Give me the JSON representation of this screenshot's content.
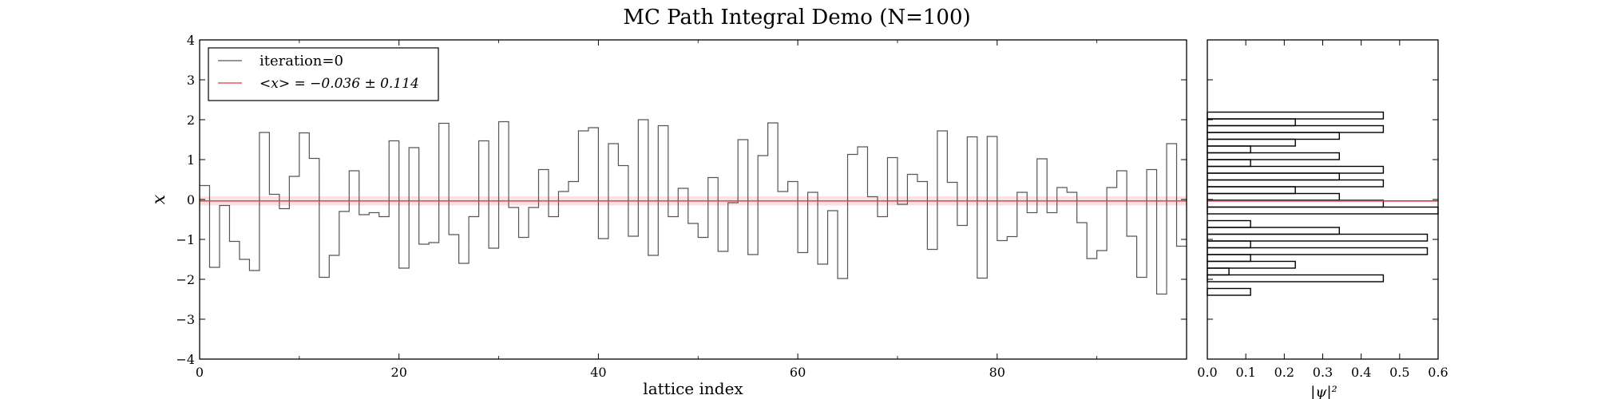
{
  "chart_data": [
    {
      "type": "line",
      "drawstyle": "steps-post",
      "title": "MC Path Integral Demo (N=100)",
      "xlabel": "lattice index",
      "ylabel": "x",
      "xlim": [
        0,
        99
      ],
      "ylim": [
        -4,
        4
      ],
      "xticks": [
        "0",
        "20",
        "40",
        "60",
        "80"
      ],
      "yticks": [
        "−4",
        "−3",
        "−2",
        "−1",
        "0",
        "1",
        "2",
        "3",
        "4"
      ],
      "grid": false,
      "legend_position": "top-left",
      "series": [
        {
          "name": "iteration=0",
          "color": "#555555",
          "x": [
            0,
            1,
            2,
            3,
            4,
            5,
            6,
            7,
            8,
            9,
            10,
            11,
            12,
            13,
            14,
            15,
            16,
            17,
            18,
            19,
            20,
            21,
            22,
            23,
            24,
            25,
            26,
            27,
            28,
            29,
            30,
            31,
            32,
            33,
            34,
            35,
            36,
            37,
            38,
            39,
            40,
            41,
            42,
            43,
            44,
            45,
            46,
            47,
            48,
            49,
            50,
            51,
            52,
            53,
            54,
            55,
            56,
            57,
            58,
            59,
            60,
            61,
            62,
            63,
            64,
            65,
            66,
            67,
            68,
            69,
            70,
            71,
            72,
            73,
            74,
            75,
            76,
            77,
            78,
            79,
            80,
            81,
            82,
            83,
            84,
            85,
            86,
            87,
            88,
            89,
            90,
            91,
            92,
            93,
            94,
            95,
            96,
            97,
            98,
            99
          ],
          "y": [
            0.35,
            -1.7,
            -0.15,
            -1.05,
            -1.5,
            -1.78,
            1.68,
            0.13,
            -0.23,
            0.58,
            1.67,
            1.03,
            -1.95,
            -1.4,
            -0.3,
            0.72,
            -0.38,
            -0.33,
            -0.43,
            1.47,
            -1.72,
            1.3,
            -1.12,
            -1.08,
            1.91,
            -0.88,
            -1.6,
            -0.43,
            1.47,
            -1.22,
            1.95,
            -0.2,
            -0.95,
            -0.2,
            0.75,
            -0.43,
            0.2,
            0.45,
            1.72,
            1.8,
            -0.98,
            1.4,
            0.85,
            -0.92,
            2.0,
            -1.4,
            1.85,
            -0.43,
            0.28,
            -0.6,
            -0.95,
            0.55,
            -1.3,
            -0.08,
            1.5,
            -1.38,
            1.1,
            1.92,
            0.2,
            0.45,
            -1.33,
            0.18,
            -1.62,
            -0.28,
            -1.98,
            1.13,
            1.32,
            0.07,
            -0.43,
            1.05,
            -0.12,
            0.63,
            0.45,
            -1.25,
            1.72,
            0.43,
            -0.65,
            1.57,
            -1.97,
            1.58,
            -1.03,
            -0.93,
            0.18,
            -0.33,
            1.02,
            -0.33,
            0.3,
            0.18,
            -0.58,
            -1.48,
            -1.28,
            0.3,
            0.72,
            -0.92,
            -1.95,
            0.75,
            -2.37,
            1.4,
            -1.17,
            -1.17
          ]
        },
        {
          "name": "<x> = −0.036 ± 0.114",
          "color": "#e0343a",
          "mean": -0.036,
          "error": 0.114
        }
      ]
    },
    {
      "type": "bar",
      "orientation": "horizontal",
      "histtype": "step",
      "xlabel": "|ψ|²",
      "xlim": [
        0,
        0.6
      ],
      "ylim": [
        -4,
        4
      ],
      "xticks": [
        "0.0",
        "0.1",
        "0.2",
        "0.3",
        "0.4",
        "0.5",
        "0.6"
      ],
      "bin_width": 0.17,
      "bins": [
        {
          "lo": -2.4,
          "value": 0.1124
        },
        {
          "lo": -2.23,
          "value": 0
        },
        {
          "lo": -2.06,
          "value": 0.4576
        },
        {
          "lo": -1.89,
          "value": 0.0562
        },
        {
          "lo": -1.72,
          "value": 0.2288
        },
        {
          "lo": -1.55,
          "value": 0.1124
        },
        {
          "lo": -1.38,
          "value": 0.572
        },
        {
          "lo": -1.21,
          "value": 0.1124
        },
        {
          "lo": -1.04,
          "value": 0.572
        },
        {
          "lo": -0.87,
          "value": 0.3432
        },
        {
          "lo": -0.7,
          "value": 0.1124
        },
        {
          "lo": -0.53,
          "value": 0
        },
        {
          "lo": -0.36,
          "value": 0.6
        },
        {
          "lo": -0.19,
          "value": 0.4576
        },
        {
          "lo": -0.02,
          "value": 0.3432
        },
        {
          "lo": 0.15,
          "value": 0.2288
        },
        {
          "lo": 0.32,
          "value": 0.4576
        },
        {
          "lo": 0.49,
          "value": 0.3432
        },
        {
          "lo": 0.66,
          "value": 0.4576
        },
        {
          "lo": 0.83,
          "value": 0.1124
        },
        {
          "lo": 1.0,
          "value": 0.3432
        },
        {
          "lo": 1.17,
          "value": 0.1124
        },
        {
          "lo": 1.34,
          "value": 0.2288
        },
        {
          "lo": 1.51,
          "value": 0.3432
        },
        {
          "lo": 1.68,
          "value": 0.4576
        },
        {
          "lo": 1.85,
          "value": 0.2288
        },
        {
          "lo": 2.02,
          "value": 0.4576
        }
      ],
      "mean_line": {
        "value": -0.036,
        "color": "#e0343a"
      }
    }
  ]
}
